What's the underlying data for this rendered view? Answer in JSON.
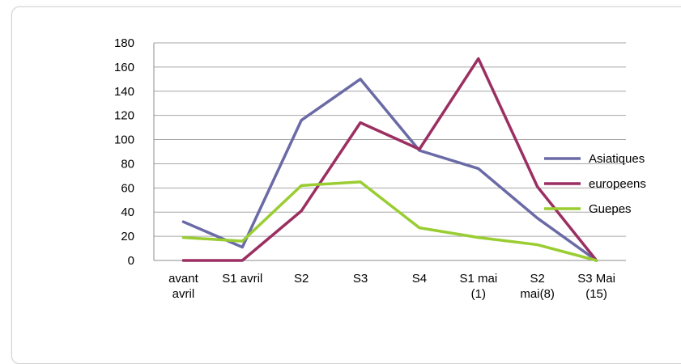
{
  "chart_data": {
    "type": "line",
    "categories": [
      [
        "avant",
        "avril"
      ],
      [
        "S1 avril"
      ],
      [
        "S2"
      ],
      [
        "S3"
      ],
      [
        "S4"
      ],
      [
        "S1 mai",
        "(1)"
      ],
      [
        "S2",
        "mai(8)"
      ],
      [
        "S3 Mai",
        "(15)"
      ]
    ],
    "series": [
      {
        "name": "Asiatiques",
        "color": "#6a6aa6",
        "values": [
          32,
          11,
          116,
          150,
          91,
          76,
          35,
          0
        ]
      },
      {
        "name": "europeens",
        "color": "#9b2f62",
        "values": [
          0,
          0,
          41,
          114,
          92,
          167,
          61,
          0
        ]
      },
      {
        "name": "Guepes",
        "color": "#9acd32",
        "values": [
          19,
          16,
          62,
          65,
          27,
          19,
          13,
          0
        ]
      }
    ],
    "y_ticks": [
      "0",
      "20",
      "40",
      "60",
      "80",
      "100",
      "120",
      "140",
      "160",
      "180"
    ],
    "ylim": [
      0,
      180
    ],
    "grid": true,
    "legend_position": "right"
  }
}
